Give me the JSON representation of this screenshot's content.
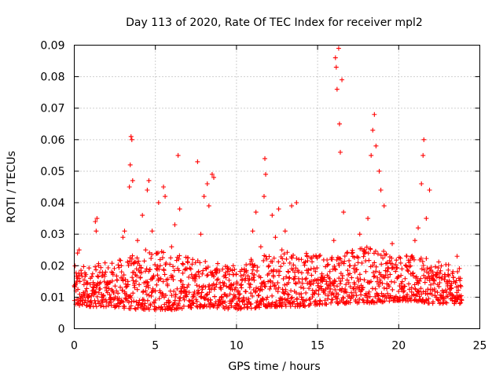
{
  "chart_data": {
    "type": "scatter",
    "title": "Day 113 of 2020, Rate Of TEC Index for receiver mpl2",
    "xlabel": "GPS time / hours",
    "ylabel": "ROTI / TECUs",
    "xlim": [
      0,
      25
    ],
    "ylim": [
      0,
      0.09
    ],
    "xticks": [
      "0",
      "5",
      "10",
      "15",
      "20",
      "25"
    ],
    "yticks": [
      "0",
      "0.01",
      "0.02",
      "0.03",
      "0.04",
      "0.05",
      "0.06",
      "0.07",
      "0.08",
      "0.09"
    ],
    "grid": true,
    "marker": "+",
    "series": [
      {
        "name": "ROTI",
        "color": "#ff0000",
        "points": [
          [
            0.1,
            0.012
          ],
          [
            0.2,
            0.024
          ],
          [
            0.3,
            0.025
          ],
          [
            0.4,
            0.009
          ],
          [
            0.6,
            0.014
          ],
          [
            0.8,
            0.011
          ],
          [
            1.0,
            0.016
          ],
          [
            1.2,
            0.013
          ],
          [
            1.3,
            0.034
          ],
          [
            1.35,
            0.031
          ],
          [
            1.4,
            0.035
          ],
          [
            1.5,
            0.02
          ],
          [
            1.7,
            0.01
          ],
          [
            2.0,
            0.013
          ],
          [
            2.3,
            0.018
          ],
          [
            2.6,
            0.012
          ],
          [
            2.9,
            0.02
          ],
          [
            3.0,
            0.029
          ],
          [
            3.1,
            0.031
          ],
          [
            3.3,
            0.015
          ],
          [
            3.4,
            0.045
          ],
          [
            3.45,
            0.052
          ],
          [
            3.5,
            0.061
          ],
          [
            3.55,
            0.06
          ],
          [
            3.6,
            0.047
          ],
          [
            3.7,
            0.021
          ],
          [
            3.9,
            0.028
          ],
          [
            4.0,
            0.014
          ],
          [
            4.2,
            0.036
          ],
          [
            4.4,
            0.025
          ],
          [
            4.5,
            0.044
          ],
          [
            4.6,
            0.047
          ],
          [
            4.8,
            0.031
          ],
          [
            5.0,
            0.012
          ],
          [
            5.2,
            0.04
          ],
          [
            5.3,
            0.02
          ],
          [
            5.5,
            0.045
          ],
          [
            5.6,
            0.042
          ],
          [
            5.8,
            0.009
          ],
          [
            6.0,
            0.026
          ],
          [
            6.2,
            0.033
          ],
          [
            6.4,
            0.055
          ],
          [
            6.5,
            0.038
          ],
          [
            6.7,
            0.014
          ],
          [
            7.0,
            0.021
          ],
          [
            7.3,
            0.016
          ],
          [
            7.6,
            0.053
          ],
          [
            7.8,
            0.03
          ],
          [
            8.0,
            0.042
          ],
          [
            8.2,
            0.046
          ],
          [
            8.3,
            0.039
          ],
          [
            8.5,
            0.049
          ],
          [
            8.6,
            0.048
          ],
          [
            8.8,
            0.019
          ],
          [
            9.0,
            0.013
          ],
          [
            9.3,
            0.017
          ],
          [
            9.6,
            0.011
          ],
          [
            9.8,
            0.02
          ],
          [
            10.0,
            0.008
          ],
          [
            10.3,
            0.014
          ],
          [
            10.6,
            0.018
          ],
          [
            10.9,
            0.022
          ],
          [
            11.0,
            0.031
          ],
          [
            11.2,
            0.037
          ],
          [
            11.5,
            0.026
          ],
          [
            11.7,
            0.042
          ],
          [
            11.75,
            0.054
          ],
          [
            11.8,
            0.049
          ],
          [
            12.0,
            0.02
          ],
          [
            12.2,
            0.036
          ],
          [
            12.4,
            0.029
          ],
          [
            12.6,
            0.038
          ],
          [
            12.8,
            0.025
          ],
          [
            13.0,
            0.031
          ],
          [
            13.2,
            0.018
          ],
          [
            13.4,
            0.039
          ],
          [
            13.7,
            0.04
          ],
          [
            14.0,
            0.022
          ],
          [
            14.3,
            0.016
          ],
          [
            14.6,
            0.019
          ],
          [
            14.9,
            0.012
          ],
          [
            15.1,
            0.023
          ],
          [
            15.3,
            0.015
          ],
          [
            15.6,
            0.017
          ],
          [
            15.9,
            0.022
          ],
          [
            16.0,
            0.028
          ],
          [
            16.1,
            0.086
          ],
          [
            16.15,
            0.083
          ],
          [
            16.2,
            0.076
          ],
          [
            16.3,
            0.089
          ],
          [
            16.35,
            0.065
          ],
          [
            16.4,
            0.056
          ],
          [
            16.5,
            0.079
          ],
          [
            16.6,
            0.037
          ],
          [
            16.8,
            0.024
          ],
          [
            17.0,
            0.02
          ],
          [
            17.3,
            0.018
          ],
          [
            17.6,
            0.03
          ],
          [
            17.9,
            0.025
          ],
          [
            18.1,
            0.035
          ],
          [
            18.3,
            0.055
          ],
          [
            18.4,
            0.063
          ],
          [
            18.5,
            0.068
          ],
          [
            18.6,
            0.058
          ],
          [
            18.8,
            0.05
          ],
          [
            18.9,
            0.044
          ],
          [
            19.1,
            0.039
          ],
          [
            19.3,
            0.021
          ],
          [
            19.6,
            0.027
          ],
          [
            19.9,
            0.016
          ],
          [
            20.2,
            0.019
          ],
          [
            20.5,
            0.023
          ],
          [
            20.8,
            0.013
          ],
          [
            21.0,
            0.028
          ],
          [
            21.2,
            0.032
          ],
          [
            21.4,
            0.046
          ],
          [
            21.5,
            0.055
          ],
          [
            21.55,
            0.06
          ],
          [
            21.7,
            0.035
          ],
          [
            21.9,
            0.044
          ],
          [
            22.1,
            0.018
          ],
          [
            22.4,
            0.014
          ],
          [
            22.7,
            0.012
          ],
          [
            23.0,
            0.015
          ],
          [
            23.3,
            0.009
          ],
          [
            23.6,
            0.023
          ],
          [
            23.8,
            0.016
          ]
        ],
        "band": {
          "times": [
            0,
            2,
            4,
            6,
            8,
            10,
            12,
            14,
            16,
            18,
            20,
            22,
            24
          ],
          "low": [
            0.007,
            0.007,
            0.006,
            0.006,
            0.007,
            0.006,
            0.007,
            0.007,
            0.008,
            0.008,
            0.009,
            0.008,
            0.008
          ],
          "high": [
            0.02,
            0.021,
            0.024,
            0.025,
            0.022,
            0.019,
            0.026,
            0.024,
            0.024,
            0.027,
            0.024,
            0.022,
            0.019
          ]
        }
      }
    ]
  }
}
